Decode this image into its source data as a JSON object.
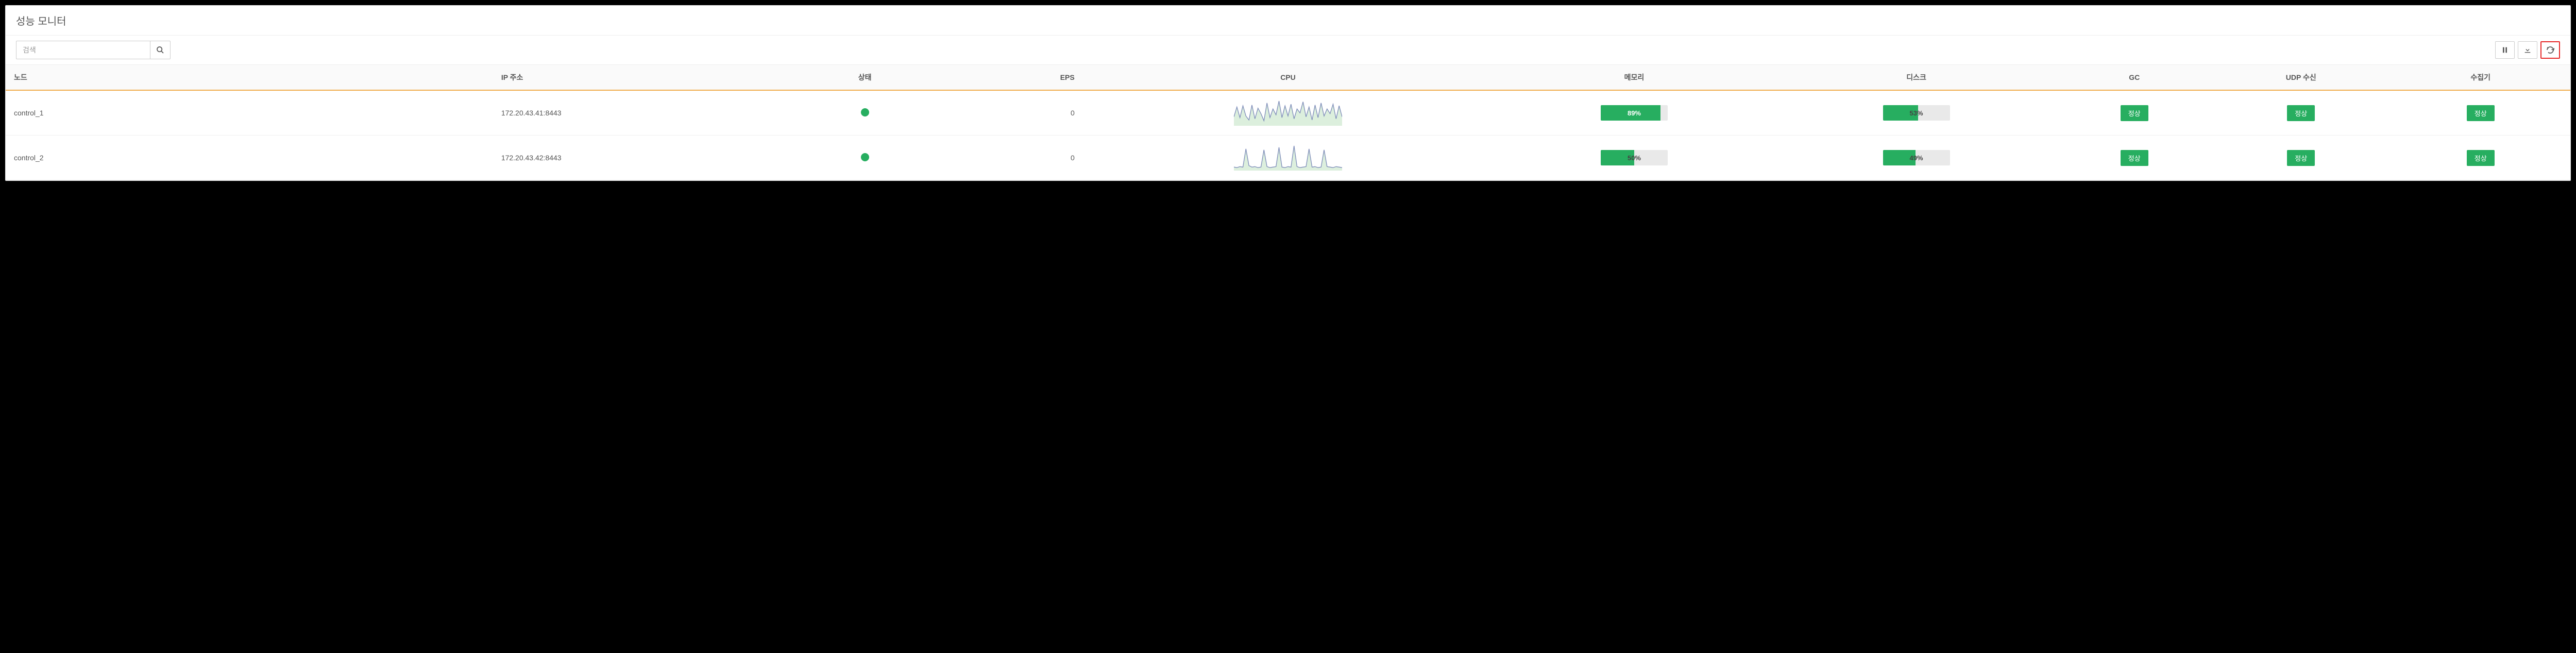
{
  "panel": {
    "title": "성능 모니터"
  },
  "search": {
    "placeholder": "검색",
    "value": ""
  },
  "colors": {
    "accent_green": "#27ae60",
    "progress_bg": "#e9e9e9",
    "header_underline": "#f0ad4e",
    "highlight_border": "#e62828",
    "spark_stroke": "#7b8ab8",
    "spark_fill": "#cde8cf"
  },
  "columns": {
    "node": "노드",
    "ip": "IP 주소",
    "status": "상태",
    "eps": "EPS",
    "cpu": "CPU",
    "memory": "메모리",
    "disk": "디스크",
    "gc": "GC",
    "udp": "UDP 수신",
    "collector": "수집기"
  },
  "rows": [
    {
      "node": "control_1",
      "ip": "172.20.43.41:8443",
      "status_color": "#27ae60",
      "eps": "0",
      "cpu_series": [
        20,
        45,
        18,
        48,
        22,
        12,
        50,
        15,
        42,
        28,
        10,
        55,
        18,
        40,
        25,
        60,
        18,
        48,
        22,
        52,
        15,
        40,
        30,
        58,
        20,
        45,
        12,
        50,
        18,
        55,
        22,
        40,
        28,
        52,
        15,
        48,
        20
      ],
      "memory_pct": 89,
      "memory_label": "89%",
      "disk_pct": 53,
      "disk_label": "53%",
      "gc": "정상",
      "udp": "정상",
      "collector": "정상"
    },
    {
      "node": "control_2",
      "ip": "172.20.43.42:8443",
      "status_color": "#27ae60",
      "eps": "0",
      "cpu_series": [
        5,
        4,
        6,
        5,
        42,
        8,
        5,
        6,
        4,
        5,
        40,
        6,
        4,
        5,
        6,
        45,
        5,
        4,
        6,
        5,
        48,
        6,
        4,
        5,
        6,
        42,
        5,
        6,
        4,
        5,
        40,
        6,
        5,
        4,
        6,
        5,
        4
      ],
      "memory_pct": 50,
      "memory_label": "50%",
      "disk_pct": 49,
      "disk_label": "49%",
      "gc": "정상",
      "udp": "정상",
      "collector": "정상"
    }
  ]
}
